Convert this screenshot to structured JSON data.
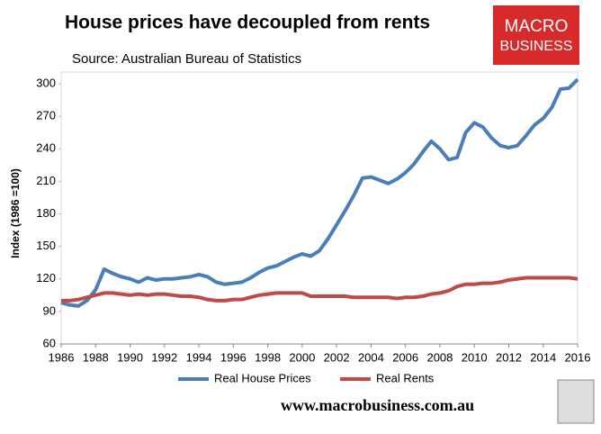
{
  "chart_data": {
    "type": "line",
    "title": "House prices have decoupled from rents",
    "subtitle": "Source: Australian Bureau of Statistics",
    "y_label": "Index (1986 =100)",
    "logo": [
      "MACRO",
      "BUSINESS"
    ],
    "footer": "www.macrobusiness.com.au",
    "x": [
      1986,
      1986.5,
      1987,
      1987.5,
      1988,
      1988.5,
      1989,
      1989.5,
      1990,
      1990.5,
      1991,
      1991.5,
      1992,
      1992.5,
      1993,
      1993.5,
      1994,
      1994.5,
      1995,
      1995.5,
      1996,
      1996.5,
      1997,
      1997.5,
      1998,
      1998.5,
      1999,
      1999.5,
      2000,
      2000.5,
      2001,
      2001.5,
      2002,
      2002.5,
      2003,
      2003.5,
      2004,
      2004.5,
      2005,
      2005.5,
      2006,
      2006.5,
      2007,
      2007.5,
      2008,
      2008.5,
      2009,
      2009.5,
      2010,
      2010.5,
      2011,
      2011.5,
      2012,
      2012.5,
      2013,
      2013.5,
      2014,
      2014.5,
      2015,
      2015.5,
      2016
    ],
    "series": [
      {
        "name": "Real House Prices",
        "color": "#4a7ebb",
        "values": [
          98,
          96,
          95,
          100,
          110,
          129,
          125,
          122,
          120,
          117,
          121,
          119,
          120,
          120,
          121,
          122,
          124,
          122,
          117,
          115,
          116,
          117,
          121,
          126,
          130,
          132,
          136,
          140,
          143,
          141,
          146,
          157,
          170,
          183,
          197,
          213,
          214,
          211,
          208,
          212,
          218,
          226,
          237,
          247,
          240,
          230,
          232,
          255,
          264,
          260,
          250,
          243,
          241,
          243,
          252,
          262,
          268,
          278,
          295,
          296,
          304
        ]
      },
      {
        "name": "Real Rents",
        "color": "#be4b48",
        "values": [
          100,
          100,
          101,
          103,
          105,
          107,
          107,
          106,
          105,
          106,
          105,
          106,
          106,
          105,
          104,
          104,
          103,
          101,
          100,
          100,
          101,
          101,
          103,
          105,
          106,
          107,
          107,
          107,
          107,
          104,
          104,
          104,
          104,
          104,
          103,
          103,
          103,
          103,
          103,
          102,
          103,
          103,
          104,
          106,
          107,
          109,
          113,
          115,
          115,
          116,
          116,
          117,
          119,
          120,
          121,
          121,
          121,
          121,
          121,
          121,
          120
        ]
      }
    ],
    "xlim": [
      1986,
      2016
    ],
    "xticks": [
      1986,
      1988,
      1990,
      1992,
      1994,
      1996,
      1998,
      2000,
      2002,
      2004,
      2006,
      2008,
      2010,
      2012,
      2014,
      2016
    ],
    "ylim": [
      60,
      300
    ],
    "yticks": [
      60,
      90,
      120,
      150,
      180,
      210,
      240,
      270,
      300
    ],
    "grid": false,
    "legend": "bottom"
  }
}
